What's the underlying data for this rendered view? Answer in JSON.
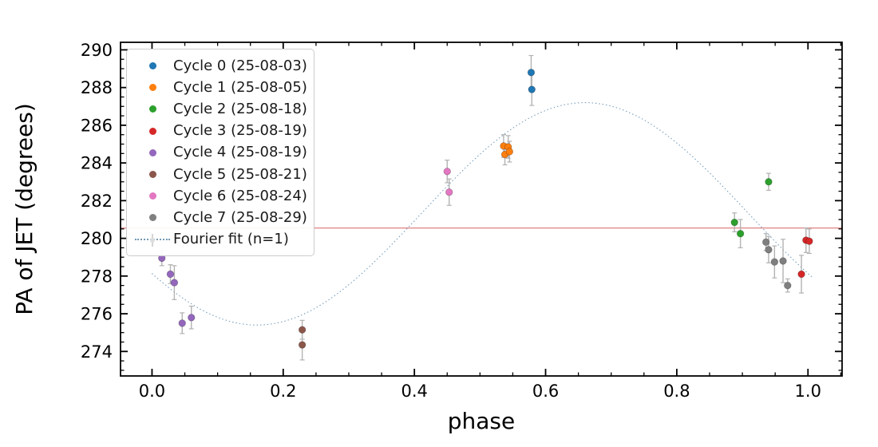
{
  "chart_data": {
    "type": "scatter",
    "title": "",
    "xlabel": "phase",
    "ylabel": "PA of JET (degrees)",
    "xlim": [
      -0.048,
      1.052
    ],
    "ylim": [
      272.7,
      290.4
    ],
    "x_major_ticks": [
      0.0,
      0.2,
      0.4,
      0.6,
      0.8,
      1.0
    ],
    "x_minor_step": 0.05,
    "x_tick_decimals": 1,
    "y_major_ticks": [
      274,
      276,
      278,
      280,
      282,
      284,
      286,
      288,
      290
    ],
    "y_minor_step": 0.5,
    "grid": false,
    "legend_position": "upper left",
    "error_bar_color": "#b3b3b3",
    "series": [
      {
        "name": "Cycle 0 (25-08-03)",
        "color": "#1f77b4",
        "points": [
          {
            "x": 0.578,
            "y": 288.8,
            "err": 0.9
          },
          {
            "x": 0.579,
            "y": 287.9,
            "err": 0.85
          }
        ]
      },
      {
        "name": "Cycle 1 (25-08-05)",
        "color": "#ff7f0e",
        "points": [
          {
            "x": 0.536,
            "y": 284.9,
            "err": 0.6
          },
          {
            "x": 0.543,
            "y": 284.85,
            "err": 0.6
          },
          {
            "x": 0.538,
            "y": 284.45,
            "err": 0.55
          },
          {
            "x": 0.545,
            "y": 284.6,
            "err": 0.55
          }
        ]
      },
      {
        "name": "Cycle 2 (25-08-18)",
        "color": "#2ca02c",
        "points": [
          {
            "x": 0.888,
            "y": 280.85,
            "err": 0.5
          },
          {
            "x": 0.897,
            "y": 280.25,
            "err": 0.75
          },
          {
            "x": 0.94,
            "y": 283.0,
            "err": 0.45
          }
        ]
      },
      {
        "name": "Cycle 3 (25-08-19)",
        "color": "#d62728",
        "points": [
          {
            "x": 0.99,
            "y": 278.1,
            "err": 1.0
          },
          {
            "x": 0.997,
            "y": 279.9,
            "err": 0.65
          },
          {
            "x": 1.002,
            "y": 279.85,
            "err": 0.65
          }
        ]
      },
      {
        "name": "Cycle 4 (25-08-19)",
        "color": "#9467bd",
        "points": [
          {
            "x": 0.015,
            "y": 278.95,
            "err": 0.4
          },
          {
            "x": 0.028,
            "y": 278.1,
            "err": 0.5
          },
          {
            "x": 0.034,
            "y": 277.65,
            "err": 0.9
          },
          {
            "x": 0.046,
            "y": 275.5,
            "err": 0.55
          },
          {
            "x": 0.06,
            "y": 275.8,
            "err": 0.6
          }
        ]
      },
      {
        "name": "Cycle 5 (25-08-21)",
        "color": "#8c564b",
        "points": [
          {
            "x": 0.229,
            "y": 275.15,
            "err": 0.5
          },
          {
            "x": 0.229,
            "y": 274.35,
            "err": 0.8
          }
        ]
      },
      {
        "name": "Cycle 6 (25-08-24)",
        "color": "#e377c2",
        "points": [
          {
            "x": 0.45,
            "y": 283.55,
            "err": 0.6
          },
          {
            "x": 0.453,
            "y": 282.45,
            "err": 0.7
          }
        ]
      },
      {
        "name": "Cycle 7 (25-08-29)",
        "color": "#7f7f7f",
        "points": [
          {
            "x": 0.936,
            "y": 279.8,
            "err": 0.45
          },
          {
            "x": 0.94,
            "y": 279.4,
            "err": 0.7
          },
          {
            "x": 0.949,
            "y": 278.75,
            "err": 0.85
          },
          {
            "x": 0.962,
            "y": 278.8,
            "err": 1.15
          },
          {
            "x": 0.969,
            "y": 277.5,
            "err": 0.35
          }
        ]
      }
    ],
    "fit_line": {
      "label": "Fourier fit (n=1)",
      "type": "sinusoid_n1",
      "color": "#7099b8",
      "mean": 281.3,
      "amplitude": 5.9,
      "phase_of_min": 0.16,
      "phase_of_max": 0.66,
      "x_range": [
        0.0,
        1.01
      ]
    },
    "mean_line": {
      "y": 280.55,
      "color": "#e29191"
    }
  }
}
